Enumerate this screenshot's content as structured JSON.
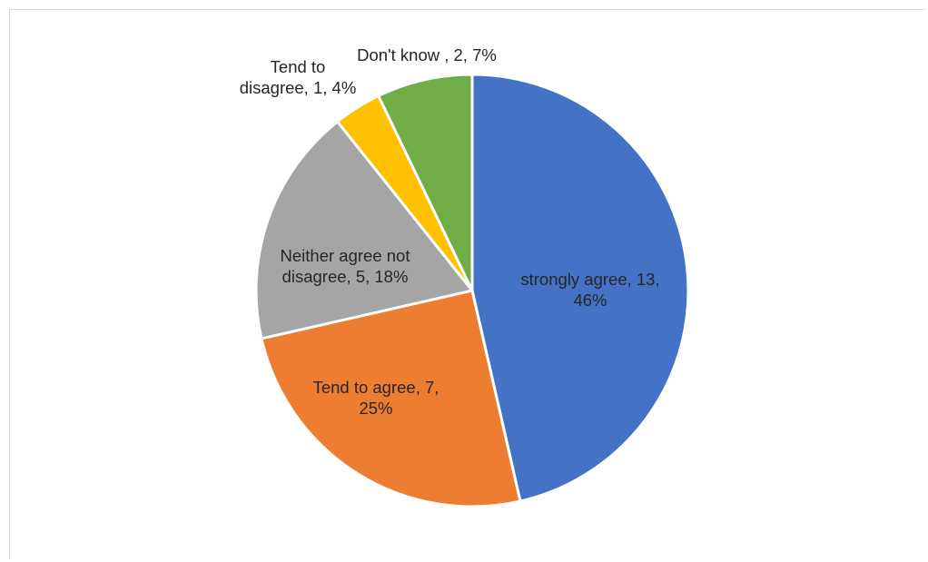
{
  "chart_data": {
    "type": "pie",
    "title": "",
    "slices": [
      {
        "name": "strongly agree",
        "value": 13,
        "percent": "46%",
        "color": "#4472C4",
        "label_lines": [
          "strongly agree, 13,",
          "46%"
        ]
      },
      {
        "name": "Tend to agree",
        "value": 7,
        "percent": "25%",
        "color": "#ED7D31",
        "label_lines": [
          "Tend to agree, 7,",
          "25%"
        ]
      },
      {
        "name": "Neither agree not disagree",
        "value": 5,
        "percent": "18%",
        "color": "#A5A5A5",
        "label_lines": [
          "Neither agree not",
          "disagree, 5, 18%"
        ]
      },
      {
        "name": "Tend to disagree",
        "value": 1,
        "percent": "4%",
        "color": "#FFC000",
        "label_lines": [
          "Tend to",
          "disagree, 1, 4%"
        ]
      },
      {
        "name": "Don't know",
        "value": 2,
        "percent": "7%",
        "color": "#70AD47",
        "label_lines": [
          "Don't know , 2, 7%"
        ]
      }
    ],
    "start_angle_deg": 0,
    "direction": "clockwise",
    "legend": "none",
    "data_labels": true
  }
}
